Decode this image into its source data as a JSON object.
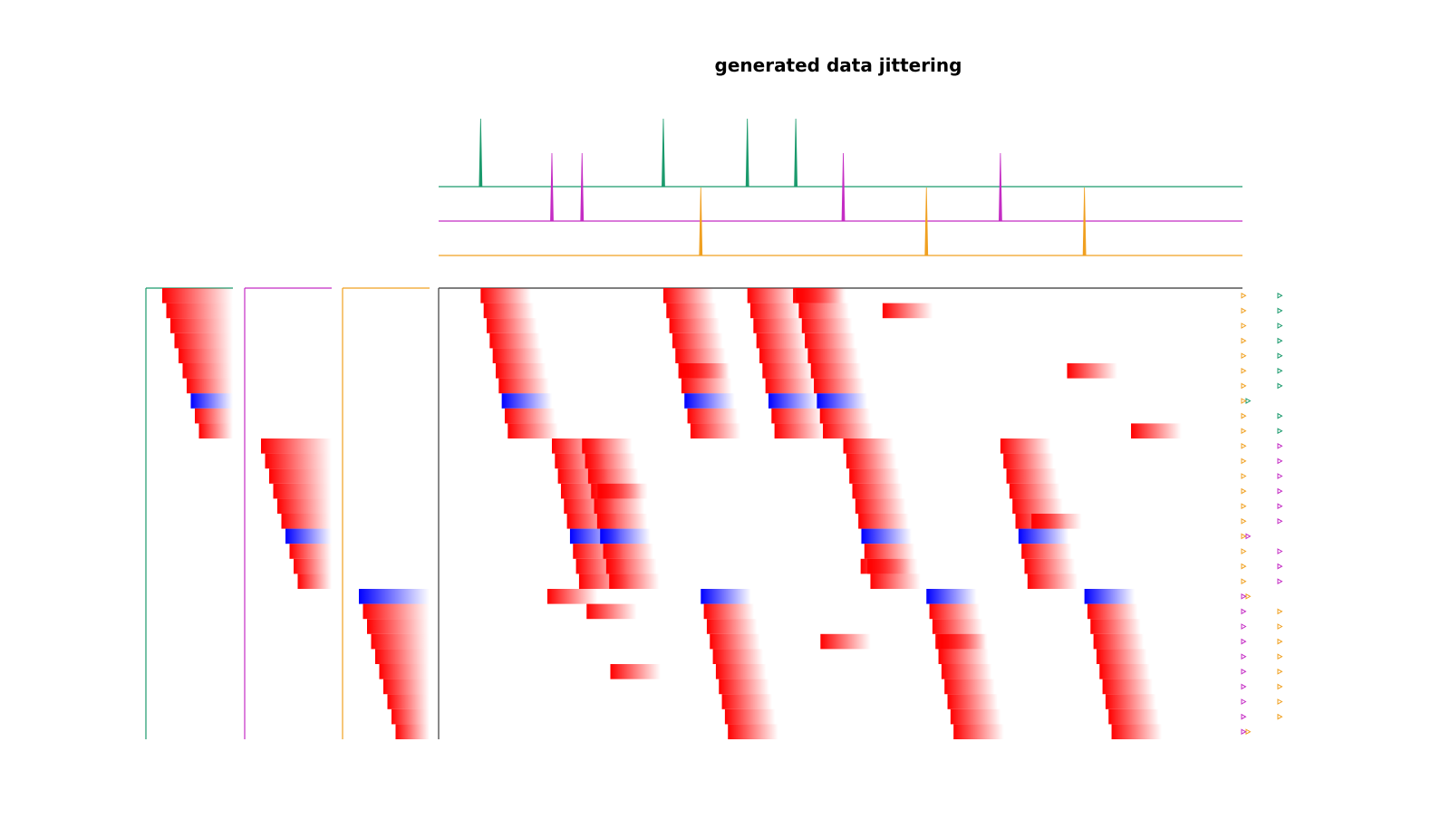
{
  "chart_data": {
    "type": "heatmap",
    "title": "generated data jittering",
    "xlabel": "",
    "ylabel": "",
    "grid": false,
    "legend": "none",
    "colors": {
      "group_0": "#1a9a6c",
      "group_1": "#c42cc4",
      "group_2": "#f0a020",
      "positive": "#ff0000",
      "negative": "#0000ff",
      "axis": "#555555"
    },
    "groups": [
      {
        "id": 0,
        "rows": 10,
        "highlight_row": 7,
        "event_times": [
          0.046,
          0.246,
          0.338,
          0.391
        ]
      },
      {
        "id": 1,
        "rows": 10,
        "highlight_row": 6,
        "event_times": [
          0.124,
          0.157,
          0.443,
          0.615
        ]
      },
      {
        "id": 2,
        "rows": 10,
        "highlight_row": 0,
        "event_times": [
          0.287,
          0.534,
          0.707
        ]
      }
    ],
    "x_range": [
      0,
      0.88
    ],
    "marginal": {
      "x": [
        0,
        0.88
      ],
      "y_offset_levels": [
        2,
        1,
        0
      ]
    },
    "cascade_rows": 30,
    "row_lag_step": 0.0033,
    "decay_width": 0.055,
    "block_decay_width": 0.055,
    "blocks": [
      {
        "row": 0,
        "t": 0.388,
        "w": 0.032
      },
      {
        "row": 1,
        "t": 0.486,
        "w": 0.014
      },
      {
        "row": 5,
        "t": 0.264,
        "w": 0.008
      },
      {
        "row": 5,
        "t": 0.688,
        "w": 0.026
      },
      {
        "row": 9,
        "t": 0.758,
        "w": 0.055
      },
      {
        "row": 13,
        "t": 0.174,
        "w": 0.016
      },
      {
        "row": 15,
        "t": 0.649,
        "w": 0.016
      },
      {
        "row": 18,
        "t": 0.462,
        "w": 0.036
      },
      {
        "row": 20,
        "t": 0.119,
        "w": 0.014
      },
      {
        "row": 21,
        "t": 0.162,
        "w": 0.016
      },
      {
        "row": 23,
        "t": 0.418,
        "w": 0.045
      },
      {
        "row": 23,
        "t": 0.546,
        "w": 0.026
      },
      {
        "row": 25,
        "t": 0.188,
        "w": 0.012
      }
    ],
    "markers": {
      "group_0": [
        0.93,
        0.93,
        0.93,
        0.93,
        0.93,
        0.93,
        0.93,
        0.88,
        0.93,
        0.93
      ],
      "group_1": [
        0.93,
        0.93,
        0.93,
        0.93,
        0.93,
        0.93,
        0.88,
        0.93,
        0.93,
        0.93
      ],
      "group_2": [
        0.88,
        0.93,
        0.93,
        0.93,
        0.93,
        0.93,
        0.93,
        0.93,
        0.93,
        0.88
      ]
    }
  }
}
